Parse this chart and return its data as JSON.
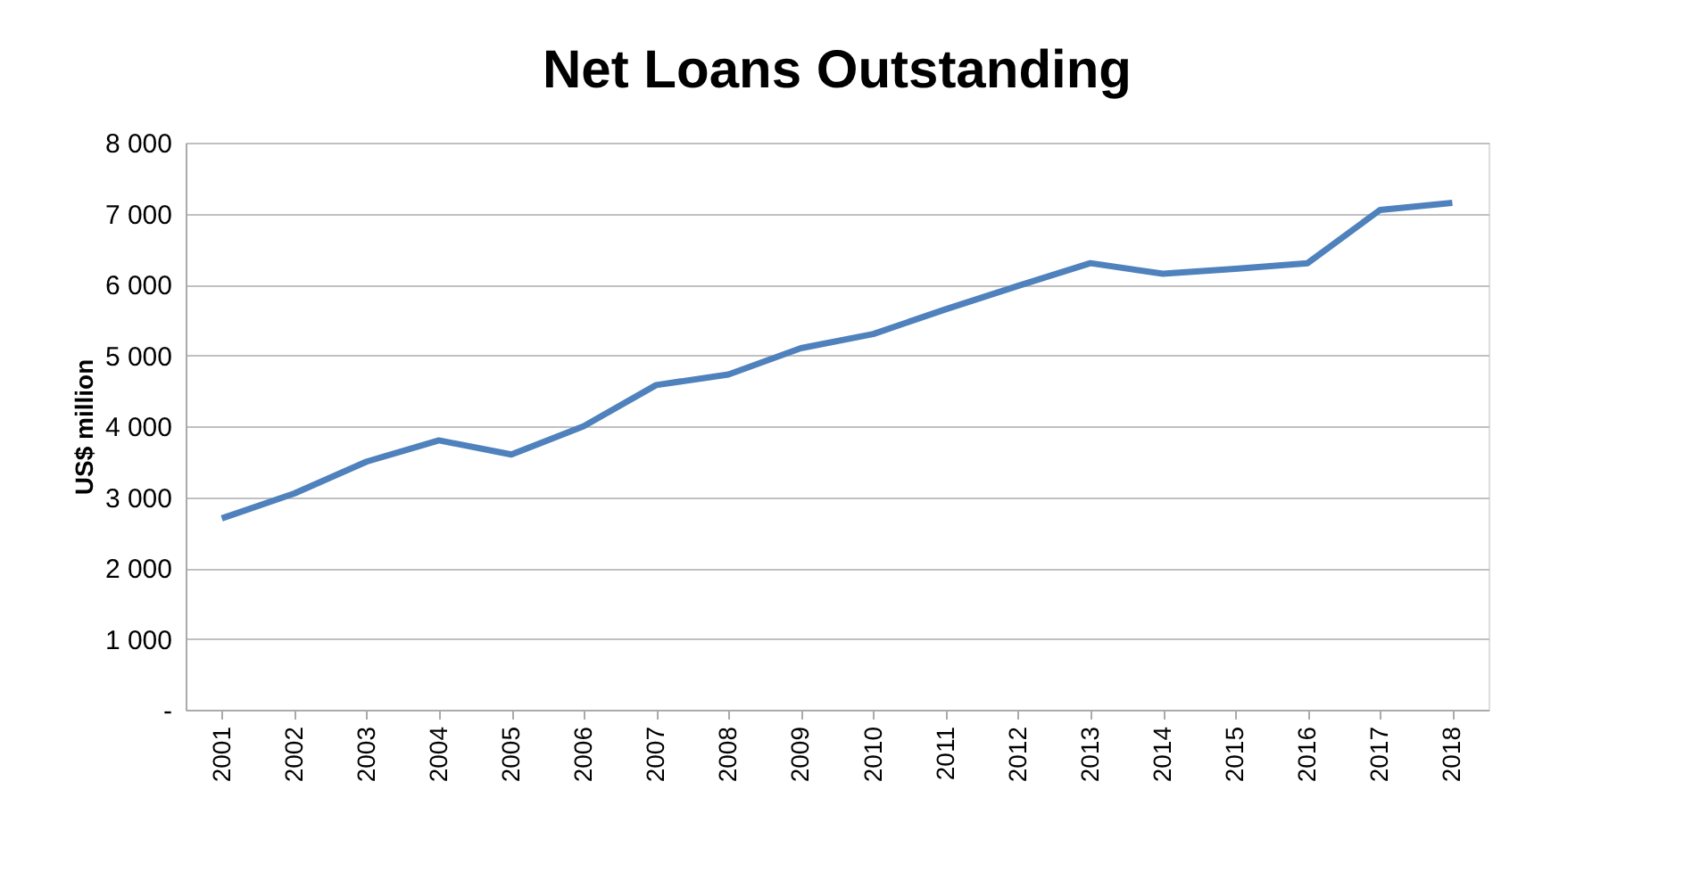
{
  "chart_data": {
    "type": "line",
    "title": "Net Loans Outstanding",
    "ylabel": "US$ million",
    "categories": [
      "2001",
      "2002",
      "2003",
      "2004",
      "2005",
      "2006",
      "2007",
      "2008",
      "2009",
      "2010",
      "2011",
      "2012",
      "2013",
      "2014",
      "2015",
      "2016",
      "2017",
      "2018"
    ],
    "series": [
      {
        "color": "#4f81bd",
        "values": [
          2700,
          3050,
          3500,
          3800,
          3600,
          4000,
          4580,
          4730,
          5100,
          5300,
          5650,
          5980,
          6300,
          6150,
          6220,
          6300,
          7050,
          7150
        ]
      }
    ],
    "ylim": [
      0,
      8000
    ],
    "yticks": [
      {
        "value": 0,
        "label": "-"
      },
      {
        "value": 1000,
        "label": "1 000"
      },
      {
        "value": 2000,
        "label": "2 000"
      },
      {
        "value": 3000,
        "label": "3 000"
      },
      {
        "value": 4000,
        "label": "4 000"
      },
      {
        "value": 5000,
        "label": "5 000"
      },
      {
        "value": 6000,
        "label": "6 000"
      },
      {
        "value": 7000,
        "label": "7 000"
      },
      {
        "value": 8000,
        "label": "8 000"
      }
    ],
    "grid": "y",
    "legend": false,
    "marker": "none",
    "line_style": "solid"
  }
}
